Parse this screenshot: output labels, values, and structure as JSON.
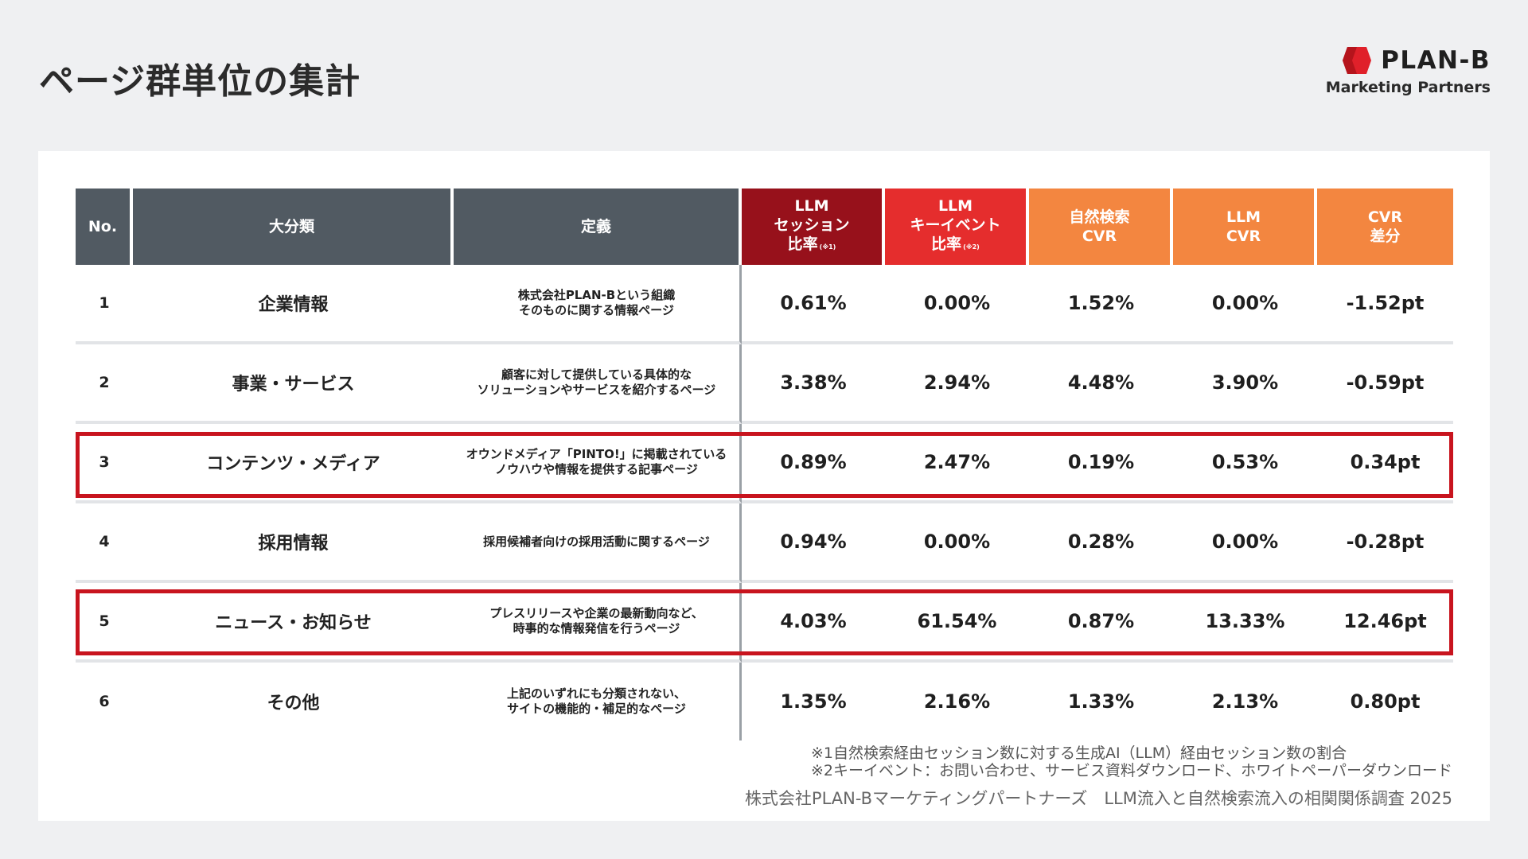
{
  "title": "ページ群単位の集計",
  "brand": {
    "name": "PLAN-B",
    "sub": "Marketing Partners",
    "icon": "plan-b-logo-mark",
    "color": "#e0202a"
  },
  "table": {
    "headers": {
      "no": "No.",
      "category": "大分類",
      "definition": "定義",
      "llm_session": [
        "LLM",
        "セッション",
        "比率"
      ],
      "llm_session_note": "(※1)",
      "llm_keyevent": [
        "LLM",
        "キーイベント",
        "比率"
      ],
      "llm_keyevent_note": "(※2)",
      "organic_cvr": [
        "自然検索",
        "CVR"
      ],
      "llm_cvr": [
        "LLM",
        "CVR"
      ],
      "cvr_diff": [
        "CVR",
        "差分"
      ]
    },
    "rows": [
      {
        "no": "1",
        "category": "企業情報",
        "definition": [
          "株式会社PLAN-Bという組織",
          "そのものに関する情報ページ"
        ],
        "llm_session": "0.61%",
        "llm_keyevent": "0.00%",
        "organic_cvr": "1.52%",
        "llm_cvr": "0.00%",
        "cvr_diff": "-1.52pt"
      },
      {
        "no": "2",
        "category": "事業・サービス",
        "definition": [
          "顧客に対して提供している具体的な",
          "ソリューションやサービスを紹介するページ"
        ],
        "llm_session": "3.38%",
        "llm_keyevent": "2.94%",
        "organic_cvr": "4.48%",
        "llm_cvr": "3.90%",
        "cvr_diff": "-0.59pt"
      },
      {
        "no": "3",
        "category": "コンテンツ・メディア",
        "definition": [
          "オウンドメディア「PINTO!」に掲載されている",
          "ノウハウや情報を提供する記事ページ"
        ],
        "llm_session": "0.89%",
        "llm_keyevent": "2.47%",
        "organic_cvr": "0.19%",
        "llm_cvr": "0.53%",
        "cvr_diff": "0.34pt",
        "highlighted": true
      },
      {
        "no": "4",
        "category": "採用情報",
        "definition": [
          "採用候補者向けの採用活動に関するページ",
          ""
        ],
        "llm_session": "0.94%",
        "llm_keyevent": "0.00%",
        "organic_cvr": "0.28%",
        "llm_cvr": "0.00%",
        "cvr_diff": "-0.28pt"
      },
      {
        "no": "5",
        "category": "ニュース・お知らせ",
        "definition": [
          "プレスリリースや企業の最新動向など、",
          "時事的な情報発信を行うページ"
        ],
        "llm_session": "4.03%",
        "llm_keyevent": "61.54%",
        "organic_cvr": "0.87%",
        "llm_cvr": "13.33%",
        "cvr_diff": "12.46pt",
        "highlighted": true
      },
      {
        "no": "6",
        "category": "その他",
        "definition": [
          "上記のいずれにも分類されない、",
          "サイトの機能的・補足的なページ"
        ],
        "llm_session": "1.35%",
        "llm_keyevent": "2.16%",
        "organic_cvr": "1.33%",
        "llm_cvr": "2.13%",
        "cvr_diff": "0.80pt"
      }
    ]
  },
  "footnotes": [
    "※1自然検索経由セッション数に対する生成AI（LLM）経由セッション数の割合",
    "※2キーイベント：お問い合わせ、サービス資料ダウンロード、ホワイトペーパーダウンロード"
  ],
  "credit": "株式会社PLAN-Bマーケティングパートナーズ　LLM流入と自然検索流入の相関関係調査 2025",
  "colors": {
    "header_dark": "#515a62",
    "header_llm_session": "#97111b",
    "header_llm_keyevent": "#e52d2d",
    "header_orange": "#f38640",
    "highlight_border": "#c8141e"
  }
}
